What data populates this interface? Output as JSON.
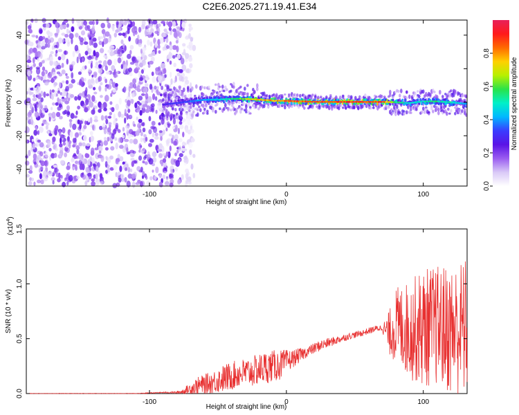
{
  "figure_title": "C2E6.2025.271.19.41.E34",
  "colors": {
    "snr_line": "#e83030",
    "axis": "#000000",
    "colormap": [
      "#ffffff",
      "#d9c9f7",
      "#9a5cf0",
      "#5a14e6",
      "#3a3cff",
      "#00b8ff",
      "#00f0c8",
      "#29e34a",
      "#b8f000",
      "#ffd000",
      "#ff6a00",
      "#ff1a1a",
      "#e8205a"
    ]
  },
  "chart_data": [
    {
      "type": "heatmap",
      "title": "C2E6.2025.271.19.41.E34",
      "xlabel": "Height of straight line (km)",
      "ylabel": "Frequency (Hz)",
      "xlim": [
        -190,
        132
      ],
      "ylim": [
        -50,
        49
      ],
      "x_ticks": [
        -100,
        0,
        100
      ],
      "x_tick_labels": [
        "-100",
        "0",
        "100"
      ],
      "y_ticks": [
        -40,
        -20,
        0,
        20,
        40
      ],
      "y_tick_labels": [
        "-40",
        "-20",
        "0",
        "20",
        "40"
      ],
      "colorbar": {
        "label": "Normalized spectral amplitude",
        "range": [
          0.0,
          1.0
        ],
        "ticks": [
          0.0,
          0.2,
          0.4,
          0.6,
          0.8
        ],
        "tick_labels": [
          "0.0",
          "0.2",
          "0.4",
          "0.6",
          "0.8"
        ]
      },
      "regions": [
        {
          "description_label": "noise",
          "x_range": [
            -190,
            -75
          ],
          "freq_range": [
            -50,
            49
          ],
          "amplitude": [
            0.03,
            0.25
          ]
        },
        {
          "description_label": "signal",
          "x_range": [
            -90,
            132
          ],
          "center_freq": 0,
          "amplitude_start": 0.3,
          "amplitude_peak": 0.95
        }
      ],
      "ridge": {
        "x": [
          -90,
          -75,
          -60,
          -50,
          -40,
          -30,
          -20,
          -10,
          0,
          10,
          20,
          30,
          40,
          50,
          60,
          70,
          80,
          90,
          100,
          110,
          120,
          132
        ],
        "freq": [
          -1.5,
          0,
          1.5,
          1.5,
          2,
          2,
          1.5,
          1,
          0.8,
          0.5,
          0.3,
          0.2,
          0.2,
          0.2,
          0.2,
          0.2,
          0,
          -0.5,
          0.5,
          0.5,
          0,
          -1
        ],
        "amplitude": [
          0.3,
          0.35,
          0.45,
          0.5,
          0.6,
          0.7,
          0.8,
          0.85,
          0.9,
          0.92,
          0.95,
          0.95,
          0.95,
          0.95,
          0.95,
          0.95,
          0.6,
          0.5,
          0.55,
          0.6,
          0.55,
          0.45
        ]
      }
    },
    {
      "type": "line",
      "xlabel": "Height of straight line (km)",
      "ylabel": "SNR (10 * v/v)",
      "y_multiplier_label": "(x10^4)",
      "xlim": [
        -190,
        132
      ],
      "ylim": [
        0,
        1.5
      ],
      "x_ticks": [
        -100,
        0,
        100
      ],
      "x_tick_labels": [
        "-100",
        "0",
        "100"
      ],
      "y_ticks": [
        0.0,
        0.5,
        1.0,
        1.5
      ],
      "y_tick_labels": [
        "0.0",
        "0.5",
        "1.0",
        "1.5"
      ],
      "series": [
        {
          "x": [
            -190,
            -170,
            -150,
            -130,
            -110,
            -90,
            -80,
            -75,
            -65,
            -55,
            -45,
            -35,
            -25,
            -15,
            -5,
            5,
            15,
            25,
            35,
            45,
            55,
            65,
            70,
            75,
            80,
            90,
            100,
            110,
            120,
            132
          ],
          "y": [
            0.0,
            0.0,
            0.0,
            0.0,
            0.0,
            0.01,
            0.01,
            0.02,
            0.07,
            0.1,
            0.14,
            0.18,
            0.2,
            0.24,
            0.26,
            0.32,
            0.38,
            0.44,
            0.48,
            0.52,
            0.55,
            0.59,
            0.6,
            0.55,
            0.62,
            0.58,
            0.6,
            0.62,
            0.58,
            0.6
          ],
          "y_spread": [
            0.003,
            0.003,
            0.003,
            0.003,
            0.003,
            0.005,
            0.01,
            0.03,
            0.08,
            0.1,
            0.13,
            0.13,
            0.14,
            0.15,
            0.14,
            0.08,
            0.05,
            0.05,
            0.04,
            0.03,
            0.03,
            0.03,
            0.03,
            0.2,
            0.35,
            0.45,
            0.55,
            0.55,
            0.6,
            0.65
          ]
        }
      ]
    }
  ]
}
